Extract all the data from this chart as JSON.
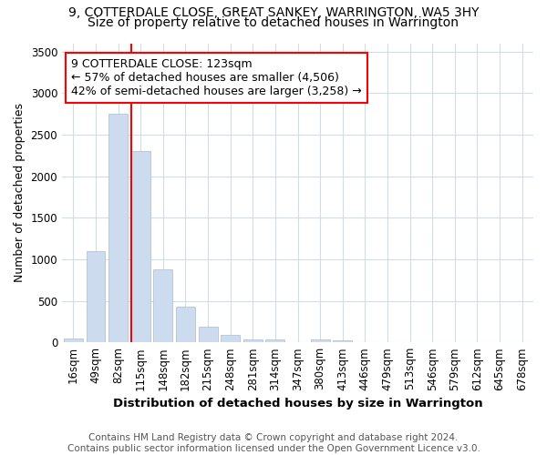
{
  "title1": "9, COTTERDALE CLOSE, GREAT SANKEY, WARRINGTON, WA5 3HY",
  "title2": "Size of property relative to detached houses in Warrington",
  "xlabel": "Distribution of detached houses by size in Warrington",
  "ylabel": "Number of detached properties",
  "categories": [
    "16sqm",
    "49sqm",
    "82sqm",
    "115sqm",
    "148sqm",
    "182sqm",
    "215sqm",
    "248sqm",
    "281sqm",
    "314sqm",
    "347sqm",
    "380sqm",
    "413sqm",
    "446sqm",
    "479sqm",
    "513sqm",
    "546sqm",
    "579sqm",
    "612sqm",
    "645sqm",
    "678sqm"
  ],
  "values": [
    50,
    1100,
    2750,
    2300,
    880,
    430,
    185,
    95,
    40,
    30,
    5,
    30,
    20,
    5,
    0,
    0,
    0,
    0,
    0,
    0,
    0
  ],
  "bar_color": "#ccdcee",
  "bar_edge_color": "#aabbcc",
  "vline_bar_index": 3,
  "annotation_text": "9 COTTERDALE CLOSE: 123sqm\n← 57% of detached houses are smaller (4,506)\n42% of semi-detached houses are larger (3,258) →",
  "annotation_box_color": "white",
  "annotation_box_edgecolor": "red",
  "vline_color": "red",
  "ylim": [
    0,
    3600
  ],
  "yticks": [
    0,
    500,
    1000,
    1500,
    2000,
    2500,
    3000,
    3500
  ],
  "footnote1": "Contains HM Land Registry data © Crown copyright and database right 2024.",
  "footnote2": "Contains public sector information licensed under the Open Government Licence v3.0.",
  "title1_fontsize": 10,
  "title2_fontsize": 10,
  "xlabel_fontsize": 9.5,
  "ylabel_fontsize": 9,
  "tick_fontsize": 8.5,
  "annotation_fontsize": 9,
  "footnote_fontsize": 7.5,
  "background_color": "#ffffff",
  "grid_color": "#d0dce8"
}
